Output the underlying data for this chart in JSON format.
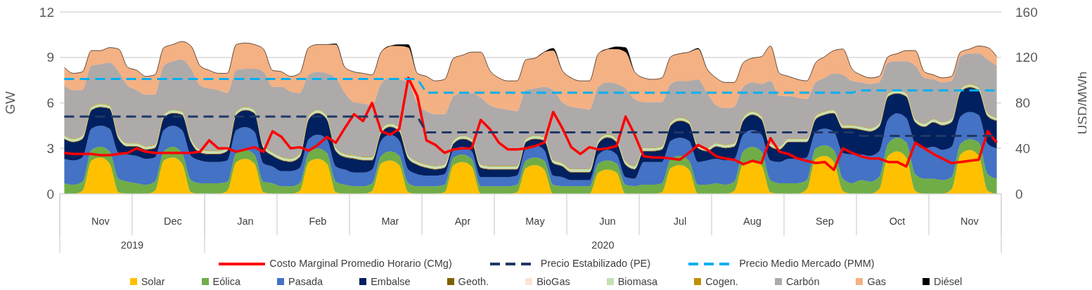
{
  "chart_data": {
    "type": "area",
    "stacked": true,
    "ylabel": "GW",
    "y2label": "USD/MWh",
    "ylim": [
      0,
      12
    ],
    "yticks": [
      0,
      3,
      6,
      9,
      12
    ],
    "y2lim": [
      0,
      160
    ],
    "y2ticks": [
      0,
      40,
      80,
      120,
      160
    ],
    "grid": "y",
    "legend": "bottom",
    "categories": [
      null,
      null,
      null,
      null,
      "Nov",
      null,
      null,
      null,
      null,
      null,
      null,
      null,
      "Dec",
      null,
      null,
      null,
      null,
      null,
      null,
      null,
      "Jan",
      null,
      null,
      null,
      null,
      null,
      null,
      null,
      "Feb",
      null,
      null,
      null,
      null,
      null,
      null,
      null,
      "Mar",
      null,
      null,
      null,
      null,
      null,
      null,
      null,
      "Apr",
      null,
      null,
      null,
      null,
      null,
      null,
      null,
      "May",
      null,
      null,
      null,
      null,
      null,
      null,
      null,
      "Jun",
      null,
      null,
      null,
      null,
      null,
      null,
      null,
      "Jul",
      null,
      null,
      null,
      null,
      null,
      null,
      null,
      "Aug",
      null,
      null,
      null,
      null,
      null,
      null,
      null,
      "Sep",
      null,
      null,
      null,
      null,
      null,
      null,
      null,
      "Oct",
      null,
      null,
      null,
      null,
      null,
      null,
      null,
      "Nov",
      null,
      null,
      null
    ],
    "annotations": [
      "2019",
      "2020"
    ],
    "series": [
      {
        "name": "Costo Marginal Promedio Horario (CMg)",
        "type": "line",
        "axis": "y2",
        "color": "#ff0000",
        "line_style": "solid",
        "values": [
          36,
          35,
          35,
          35,
          34,
          34,
          35,
          36,
          40,
          37,
          36,
          36,
          36,
          36,
          36,
          37,
          47,
          40,
          40,
          37,
          39,
          41,
          37,
          55,
          50,
          40,
          41,
          38,
          43,
          50,
          45,
          58,
          70,
          64,
          80,
          55,
          52,
          57,
          102,
          86,
          47,
          43,
          36,
          39,
          40,
          40,
          65,
          57,
          45,
          39,
          39,
          40,
          42,
          45,
          72,
          58,
          41,
          35,
          41,
          39,
          40,
          42,
          68,
          52,
          33,
          32,
          32,
          31,
          30,
          36,
          43,
          39,
          33,
          31,
          30,
          26,
          29,
          27,
          49,
          37,
          35,
          31,
          29,
          27,
          28,
          21,
          40,
          36,
          33,
          31,
          31,
          28,
          28,
          24,
          45,
          40,
          35,
          31,
          27,
          28,
          29,
          30,
          55,
          45
        ]
      },
      {
        "name": "Precio Estabilizado (PE)",
        "type": "line",
        "axis": "y2",
        "color": "#203864",
        "line_style": "dashed",
        "values": [
          68,
          68,
          68,
          68,
          68,
          68,
          68,
          68,
          68,
          68,
          68,
          68,
          68,
          68,
          68,
          68,
          68,
          68,
          68,
          68,
          68,
          68,
          68,
          68,
          68,
          68,
          68,
          68,
          68,
          68,
          68,
          68,
          68,
          68,
          68,
          68,
          68,
          68,
          68,
          68,
          54,
          54,
          54,
          54,
          54,
          54,
          54,
          54,
          54,
          54,
          54,
          54,
          54,
          54,
          54,
          54,
          54,
          54,
          54,
          54,
          54,
          54,
          54,
          54,
          54,
          54,
          54,
          54,
          54,
          54,
          54,
          54,
          54,
          54,
          54,
          54,
          54,
          54,
          54,
          54,
          54,
          54,
          54,
          54,
          54,
          54,
          54,
          54,
          51,
          51,
          51,
          51,
          51,
          51,
          51,
          51,
          51,
          51,
          51,
          51,
          51,
          51,
          51,
          51
        ]
      },
      {
        "name": "Precio Medio Mercado (PMM)",
        "type": "line",
        "axis": "y2",
        "color": "#00b0f0",
        "line_style": "dashed",
        "values": [
          101,
          101,
          101,
          101,
          101,
          101,
          101,
          101,
          101,
          101,
          101,
          101,
          101,
          101,
          101,
          101,
          101,
          101,
          101,
          101,
          101,
          101,
          101,
          101,
          101,
          101,
          101,
          101,
          101,
          101,
          101,
          101,
          101,
          101,
          101,
          101,
          101,
          101,
          101,
          101,
          89,
          89,
          89,
          89,
          89,
          89,
          89,
          89,
          89,
          89,
          89,
          89,
          89,
          89,
          89,
          89,
          89,
          89,
          89,
          89,
          89,
          89,
          89,
          89,
          89,
          89,
          89,
          89,
          89,
          89,
          89,
          89,
          89,
          89,
          89,
          89,
          89,
          89,
          89,
          89,
          89,
          89,
          89,
          89,
          89,
          89,
          89,
          89,
          91,
          91,
          91,
          91,
          91,
          91,
          91,
          91,
          91,
          91,
          91,
          91,
          91,
          91,
          91,
          91
        ]
      },
      {
        "name": "Solar",
        "color": "#ffc000",
        "values": [
          0,
          0,
          0.2,
          2.2,
          2.4,
          2.0,
          0.1,
          0,
          0,
          0,
          0.2,
          2.2,
          2.4,
          2.0,
          0.1,
          0,
          0,
          0,
          0.2,
          2.1,
          2.3,
          2.0,
          0.1,
          0,
          0,
          0,
          0.2,
          2.1,
          2.3,
          2.0,
          0.1,
          0,
          0,
          0,
          0.2,
          2.0,
          2.2,
          1.9,
          0.1,
          0,
          0,
          0,
          0.1,
          1.9,
          2.1,
          1.8,
          0,
          0,
          0,
          0,
          0.1,
          1.7,
          1.9,
          1.6,
          0,
          0,
          0,
          0,
          0,
          1.4,
          1.6,
          1.4,
          0,
          0,
          0,
          0,
          0.1,
          1.7,
          1.9,
          1.6,
          0,
          0,
          0,
          0,
          0.2,
          2.0,
          2.2,
          1.9,
          0.1,
          0,
          0,
          0,
          0.3,
          2.3,
          2.5,
          2.1,
          0.2,
          0,
          0,
          0,
          0.3,
          2.5,
          2.8,
          2.4,
          0.2,
          0,
          0,
          0,
          0.3,
          2.6,
          2.9,
          2.5,
          0.2,
          0
        ]
      },
      {
        "name": "Eólica",
        "color": "#70ad47",
        "values": [
          0.7,
          0.6,
          0.6,
          0.7,
          0.7,
          0.8,
          0.9,
          0.8,
          0.7,
          0.6,
          0.6,
          0.6,
          0.7,
          0.7,
          0.8,
          0.7,
          0.7,
          0.7,
          0.6,
          0.6,
          0.6,
          0.6,
          0.7,
          0.7,
          0.5,
          0.5,
          0.5,
          0.6,
          0.7,
          0.7,
          0.7,
          0.6,
          0.5,
          0.5,
          0.5,
          0.5,
          0.6,
          0.6,
          0.6,
          0.5,
          0.5,
          0.5,
          0.5,
          0.5,
          0.5,
          0.5,
          0.5,
          0.5,
          0.5,
          0.5,
          0.5,
          0.5,
          0.5,
          0.6,
          0.6,
          0.5,
          0.5,
          0.5,
          0.5,
          0.6,
          0.6,
          0.6,
          0.6,
          0.5,
          0.6,
          0.6,
          0.6,
          0.6,
          0.6,
          0.6,
          0.6,
          0.6,
          0.7,
          0.6,
          0.6,
          0.8,
          0.9,
          0.9,
          0.8,
          0.7,
          0.7,
          0.7,
          0.6,
          0.7,
          0.7,
          0.8,
          0.8,
          0.7,
          0.9,
          0.8,
          0.8,
          0.8,
          0.9,
          1.0,
          1.1,
          1.0,
          1.0,
          0.9,
          0.8,
          0.7,
          0.7,
          0.9,
          1.1,
          1.0
        ]
      },
      {
        "name": "Pasada",
        "color": "#4472c4",
        "values": [
          1.6,
          1.6,
          1.6,
          1.4,
          1.4,
          1.5,
          1.7,
          1.8,
          1.8,
          1.7,
          1.6,
          1.4,
          1.4,
          1.5,
          1.6,
          1.5,
          1.4,
          1.4,
          1.4,
          1.5,
          1.5,
          1.5,
          1.2,
          1.1,
          1.0,
          1.0,
          1.0,
          0.9,
          0.9,
          0.9,
          1.0,
          1.0,
          0.9,
          0.9,
          0.9,
          1.0,
          1.1,
          1.0,
          0.9,
          0.8,
          0.7,
          0.7,
          0.7,
          0.5,
          0.5,
          0.5,
          0.6,
          0.6,
          0.6,
          0.6,
          0.6,
          0.8,
          0.8,
          0.7,
          0.6,
          0.6,
          0.4,
          0.4,
          0.4,
          0.6,
          0.7,
          0.6,
          0.5,
          0.5,
          1.5,
          1.5,
          1.4,
          1.2,
          1.2,
          1.3,
          1.5,
          1.6,
          1.6,
          1.6,
          1.5,
          1.1,
          1.1,
          1.1,
          1.3,
          1.4,
          1.6,
          1.6,
          1.5,
          1.1,
          1.1,
          1.2,
          1.7,
          1.9,
          1.7,
          1.7,
          1.7,
          1.6,
          1.6,
          1.6,
          2.0,
          2.0,
          2.1,
          2.0,
          2.0,
          1.8,
          1.8,
          1.8,
          2.0,
          2.0
        ]
      },
      {
        "name": "Embalse",
        "color": "#002060",
        "values": [
          1.3,
          1.2,
          1.2,
          1.2,
          1.2,
          1.3,
          0.9,
          0.5,
          0.6,
          0.6,
          0.6,
          0.8,
          0.8,
          1.0,
          0.9,
          0.5,
          0.5,
          0.5,
          0.6,
          1.0,
          1.1,
          1.2,
          1.0,
          0.7,
          0.7,
          0.6,
          0.7,
          1.3,
          1.4,
          1.3,
          1.0,
          0.8,
          0.9,
          0.8,
          0.6,
          0.5,
          0.5,
          0.6,
          0.7,
          0.6,
          0.5,
          0.4,
          0.4,
          0.4,
          0.5,
          0.6,
          0.6,
          0.5,
          0.5,
          0.5,
          0.4,
          0.4,
          0.4,
          0.6,
          0.8,
          0.7,
          0.5,
          0.5,
          0.5,
          0.7,
          0.8,
          0.8,
          0.8,
          0.6,
          0.7,
          0.7,
          0.8,
          1.0,
          1.1,
          1.1,
          0.9,
          0.6,
          0.8,
          0.8,
          0.8,
          0.9,
          1.0,
          1.0,
          0.9,
          0.8,
          1.1,
          1.1,
          1.0,
          0.8,
          0.9,
          1.2,
          1.6,
          1.7,
          1.6,
          1.6,
          1.6,
          1.5,
          1.3,
          1.4,
          1.4,
          1.4,
          1.6,
          1.6,
          1.6,
          1.6,
          1.6,
          1.6,
          1.8,
          1.8
        ]
      },
      {
        "name": "Geoth.",
        "color": "#7f6000",
        "values": [
          0.05,
          0.05,
          0.05,
          0.05,
          0.05,
          0.05,
          0.05,
          0.05,
          0.05,
          0.05,
          0.05,
          0.05,
          0.05,
          0.05,
          0.05,
          0.05,
          0.05,
          0.05,
          0.05,
          0.05,
          0.05,
          0.05,
          0.05,
          0.05,
          0.05,
          0.05,
          0.05,
          0.05,
          0.05,
          0.05,
          0.05,
          0.05,
          0.05,
          0.05,
          0.05,
          0.05,
          0.05,
          0.05,
          0.05,
          0.05,
          0.05,
          0.05,
          0.05,
          0.05,
          0.05,
          0.05,
          0.05,
          0.05,
          0.05,
          0.05,
          0.05,
          0.05,
          0.05,
          0.05,
          0.05,
          0.05,
          0.05,
          0.05,
          0.05,
          0.05,
          0.05,
          0.05,
          0.05,
          0.05,
          0.05,
          0.05,
          0.05,
          0.05,
          0.05,
          0.05,
          0.05,
          0.05,
          0.05,
          0.05,
          0.05,
          0.05,
          0.05,
          0.05,
          0.05,
          0.05,
          0.05,
          0.05,
          0.05,
          0.05,
          0.05,
          0.05,
          0.05,
          0.05,
          0.05,
          0.05,
          0.05,
          0.05,
          0.05,
          0.05,
          0.05,
          0.05,
          0.05,
          0.05,
          0.05,
          0.05,
          0.05,
          0.05,
          0.05,
          0.05
        ]
      },
      {
        "name": "BioGas",
        "color": "#fbe5d6",
        "values": [
          0.02,
          0.02,
          0.02,
          0.02,
          0.02,
          0.02,
          0.02,
          0.02,
          0.02,
          0.02,
          0.02,
          0.02,
          0.02,
          0.02,
          0.02,
          0.02,
          0.02,
          0.02,
          0.02,
          0.02,
          0.02,
          0.02,
          0.02,
          0.02,
          0.02,
          0.02,
          0.02,
          0.02,
          0.02,
          0.02,
          0.02,
          0.02,
          0.02,
          0.02,
          0.02,
          0.02,
          0.02,
          0.02,
          0.02,
          0.02,
          0.02,
          0.02,
          0.02,
          0.02,
          0.02,
          0.02,
          0.02,
          0.02,
          0.02,
          0.02,
          0.02,
          0.02,
          0.02,
          0.02,
          0.02,
          0.02,
          0.02,
          0.02,
          0.02,
          0.02,
          0.02,
          0.02,
          0.02,
          0.02,
          0.02,
          0.02,
          0.02,
          0.02,
          0.02,
          0.02,
          0.02,
          0.02,
          0.02,
          0.02,
          0.02,
          0.02,
          0.02,
          0.02,
          0.02,
          0.02,
          0.02,
          0.02,
          0.02,
          0.02,
          0.02,
          0.02,
          0.02,
          0.02,
          0.02,
          0.02,
          0.02,
          0.02,
          0.02,
          0.02,
          0.02,
          0.02,
          0.02,
          0.02,
          0.02,
          0.02,
          0.02,
          0.02,
          0.02,
          0.02
        ]
      },
      {
        "name": "Biomasa",
        "color": "#c5e0b4",
        "values": [
          0.15,
          0.15,
          0.15,
          0.15,
          0.15,
          0.15,
          0.15,
          0.15,
          0.15,
          0.15,
          0.15,
          0.15,
          0.15,
          0.15,
          0.15,
          0.15,
          0.15,
          0.15,
          0.15,
          0.15,
          0.15,
          0.15,
          0.15,
          0.15,
          0.15,
          0.15,
          0.15,
          0.15,
          0.15,
          0.15,
          0.15,
          0.15,
          0.15,
          0.15,
          0.15,
          0.15,
          0.15,
          0.15,
          0.15,
          0.15,
          0.15,
          0.15,
          0.15,
          0.15,
          0.15,
          0.15,
          0.15,
          0.15,
          0.15,
          0.15,
          0.15,
          0.15,
          0.15,
          0.15,
          0.15,
          0.15,
          0.15,
          0.15,
          0.15,
          0.15,
          0.15,
          0.15,
          0.15,
          0.15,
          0.15,
          0.15,
          0.15,
          0.15,
          0.15,
          0.15,
          0.15,
          0.15,
          0.15,
          0.15,
          0.15,
          0.15,
          0.15,
          0.15,
          0.15,
          0.15,
          0.15,
          0.15,
          0.15,
          0.15,
          0.15,
          0.15,
          0.15,
          0.15,
          0.15,
          0.15,
          0.15,
          0.15,
          0.15,
          0.15,
          0.15,
          0.15,
          0.15,
          0.15,
          0.15,
          0.15,
          0.15,
          0.15,
          0.15,
          0.15
        ]
      },
      {
        "name": "Cogen.",
        "color": "#bf9000",
        "values": [
          0.03,
          0.03,
          0.03,
          0.03,
          0.03,
          0.03,
          0.03,
          0.03,
          0.03,
          0.03,
          0.03,
          0.03,
          0.03,
          0.03,
          0.03,
          0.03,
          0.03,
          0.03,
          0.03,
          0.03,
          0.03,
          0.03,
          0.03,
          0.03,
          0.03,
          0.03,
          0.03,
          0.03,
          0.03,
          0.03,
          0.03,
          0.03,
          0.03,
          0.03,
          0.03,
          0.03,
          0.03,
          0.03,
          0.03,
          0.03,
          0.03,
          0.03,
          0.03,
          0.03,
          0.03,
          0.03,
          0.03,
          0.03,
          0.03,
          0.03,
          0.03,
          0.03,
          0.03,
          0.03,
          0.03,
          0.03,
          0.03,
          0.03,
          0.03,
          0.03,
          0.03,
          0.03,
          0.03,
          0.03,
          0.03,
          0.03,
          0.03,
          0.03,
          0.03,
          0.03,
          0.03,
          0.03,
          0.03,
          0.03,
          0.03,
          0.03,
          0.03,
          0.03,
          0.03,
          0.03,
          0.03,
          0.03,
          0.03,
          0.03,
          0.03,
          0.03,
          0.03,
          0.03,
          0.03,
          0.03,
          0.03,
          0.03,
          0.03,
          0.03,
          0.03,
          0.03,
          0.03,
          0.03,
          0.03,
          0.03,
          0.03,
          0.03,
          0.03,
          0.03
        ]
      },
      {
        "name": "Carbón",
        "color": "#aeaaaa",
        "values": [
          3.3,
          3.2,
          3.0,
          2.7,
          2.6,
          2.8,
          4.2,
          3.8,
          3.5,
          3.4,
          3.3,
          3.2,
          3.2,
          3.4,
          4.6,
          4.2,
          4.1,
          4.0,
          3.6,
          2.7,
          2.5,
          2.7,
          4.8,
          4.3,
          4.6,
          4.4,
          4.0,
          2.7,
          2.5,
          2.8,
          4.6,
          4.0,
          3.5,
          3.5,
          3.4,
          3.0,
          3.0,
          3.2,
          4.8,
          3.8,
          3.5,
          3.4,
          3.3,
          2.9,
          2.8,
          3.0,
          4.4,
          4.0,
          3.8,
          3.7,
          3.6,
          3.2,
          3.1,
          3.3,
          4.6,
          4.0,
          4.1,
          4.0,
          3.9,
          3.5,
          3.4,
          3.6,
          4.8,
          4.4,
          3.0,
          3.0,
          2.9,
          2.5,
          2.4,
          2.6,
          4.3,
          3.6,
          2.5,
          2.4,
          2.4,
          2.0,
          1.9,
          2.1,
          4.1,
          3.3,
          2.8,
          2.7,
          2.6,
          2.2,
          2.2,
          2.4,
          3.3,
          2.9,
          2.9,
          2.9,
          2.7,
          2.0,
          1.9,
          2.1,
          3.5,
          3.0,
          2.6,
          2.6,
          2.5,
          2.1,
          2.0,
          2.2,
          3.5,
          3.4
        ]
      },
      {
        "name": "Gas",
        "color": "#f4b183",
        "values": [
          1.2,
          1.1,
          1.2,
          1.0,
          0.9,
          1.0,
          1.5,
          1.2,
          1.3,
          1.2,
          1.3,
          1.2,
          1.1,
          1.2,
          1.5,
          1.3,
          1.2,
          1.1,
          1.3,
          1.7,
          1.7,
          1.6,
          1.5,
          1.1,
          1.0,
          1.0,
          1.3,
          1.8,
          1.8,
          1.9,
          2.2,
          1.7,
          2.0,
          2.0,
          2.0,
          2.1,
          2.1,
          2.2,
          2.3,
          2.0,
          2.3,
          2.2,
          2.3,
          2.5,
          2.5,
          2.7,
          3.0,
          2.3,
          2.0,
          1.9,
          2.0,
          2.0,
          2.0,
          2.3,
          2.6,
          2.1,
          1.9,
          1.8,
          1.9,
          2.2,
          2.2,
          2.3,
          2.4,
          1.8,
          1.6,
          1.5,
          1.6,
          1.8,
          1.8,
          1.9,
          2.0,
          1.6,
          1.8,
          1.7,
          1.6,
          1.6,
          1.6,
          1.8,
          2.3,
          1.5,
          1.3,
          1.2,
          1.2,
          1.3,
          1.4,
          1.5,
          1.7,
          0.8,
          0.5,
          0.4,
          0.4,
          0.4,
          0.5,
          0.7,
          1.0,
          0.4,
          0.3,
          0.3,
          0.3,
          0.3,
          0.3,
          0.5,
          0.8,
          0.6
        ]
      },
      {
        "name": "Diésel",
        "color": "#000000",
        "values": [
          0,
          0,
          0,
          0,
          0,
          0,
          0,
          0,
          0,
          0,
          0,
          0,
          0,
          0,
          0,
          0,
          0,
          0,
          0,
          0,
          0,
          0,
          0,
          0,
          0,
          0,
          0,
          0,
          0,
          0,
          0.05,
          0,
          0,
          0,
          0,
          0,
          0,
          0.1,
          0.2,
          0,
          0,
          0,
          0,
          0,
          0,
          0,
          0,
          0,
          0,
          0,
          0,
          0,
          0,
          0,
          0.15,
          0,
          0,
          0,
          0,
          0,
          0,
          0.15,
          0.3,
          0,
          0,
          0,
          0,
          0,
          0,
          0,
          0.05,
          0,
          0,
          0,
          0,
          0,
          0,
          0,
          0,
          0,
          0,
          0,
          0,
          0,
          0,
          0,
          0,
          0,
          0,
          0,
          0,
          0,
          0,
          0,
          0,
          0,
          0,
          0,
          0,
          0,
          0,
          0,
          0,
          0
        ]
      }
    ]
  }
}
